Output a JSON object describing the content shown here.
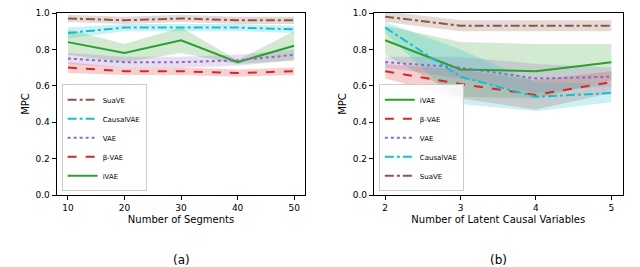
{
  "chart_data": [
    {
      "type": "line",
      "x_label": "Number of Segments",
      "y_label": "MPC",
      "annotations": [
        "(a)"
      ],
      "x": [
        10,
        20,
        30,
        40,
        50
      ],
      "xlim": [
        8,
        52
      ],
      "xticks": [
        10,
        20,
        30,
        40,
        50
      ],
      "ylim": [
        0,
        1
      ],
      "yticks": [
        {
          "value": 0,
          "label": "0.0"
        },
        {
          "value": 0.2,
          "label": "0.2"
        },
        {
          "value": 0.4,
          "label": "0.4"
        },
        {
          "value": 0.6,
          "label": "0.6"
        },
        {
          "value": 0.8,
          "label": "0.8"
        },
        {
          "value": 1,
          "label": "1.0"
        }
      ],
      "grid": false,
      "legend": "lower left",
      "series": [
        {
          "name": "iVAE",
          "color": "#2ca02c",
          "line_style": "solid",
          "values": [
            0.84,
            0.78,
            0.85,
            0.73,
            0.82
          ],
          "error": [
            0.07,
            0.05,
            0.07,
            0.01,
            0.08
          ]
        },
        {
          "name": "β-VAE",
          "color": "#d62728",
          "line_style": "dash",
          "values": [
            0.7,
            0.68,
            0.68,
            0.67,
            0.68
          ],
          "error": [
            0.03,
            0.02,
            0.02,
            0.02,
            0.02
          ]
        },
        {
          "name": "VAE",
          "color": "#9467bd",
          "line_style": "dot",
          "values": [
            0.75,
            0.73,
            0.73,
            0.74,
            0.77
          ],
          "error": [
            0.03,
            0.03,
            0.03,
            0.03,
            0.03
          ]
        },
        {
          "name": "CausalVAE",
          "color": "#17becf",
          "line_style": "dashdot",
          "values": [
            0.89,
            0.92,
            0.92,
            0.92,
            0.91
          ],
          "error": [
            0.03,
            0.02,
            0.02,
            0.02,
            0.02
          ]
        },
        {
          "name": "SuaVE",
          "color": "#8c564b",
          "line_style": "dashdot",
          "values": [
            0.97,
            0.96,
            0.97,
            0.96,
            0.96
          ],
          "error": [
            0.02,
            0.02,
            0.02,
            0.02,
            0.02
          ]
        }
      ]
    },
    {
      "type": "line",
      "x_label": "Number of Latent Causal Variables",
      "y_label": "MPC",
      "annotations": [
        "(b)"
      ],
      "x": [
        2,
        3,
        4,
        5
      ],
      "xlim": [
        1.85,
        5.15
      ],
      "xticks": [
        2,
        3,
        4,
        5
      ],
      "ylim": [
        0,
        1
      ],
      "yticks": [
        {
          "value": 0,
          "label": "0.0"
        },
        {
          "value": 0.2,
          "label": "0.2"
        },
        {
          "value": 0.4,
          "label": "0.4"
        },
        {
          "value": 0.6,
          "label": "0.6"
        },
        {
          "value": 0.8,
          "label": "0.8"
        },
        {
          "value": 1,
          "label": "1.0"
        }
      ],
      "grid": false,
      "legend": "lower left",
      "series": [
        {
          "name": "iVAE",
          "color": "#2ca02c",
          "line_style": "solid",
          "values": [
            0.85,
            0.69,
            0.68,
            0.73
          ],
          "error": [
            0.08,
            0.15,
            0.15,
            0.1
          ]
        },
        {
          "name": "β-VAE",
          "color": "#d62728",
          "line_style": "dash",
          "values": [
            0.68,
            0.61,
            0.55,
            0.62
          ],
          "error": [
            0.04,
            0.08,
            0.08,
            0.06
          ]
        },
        {
          "name": "VAE",
          "color": "#9467bd",
          "line_style": "dot",
          "values": [
            0.73,
            0.7,
            0.64,
            0.65
          ],
          "error": [
            0.03,
            0.06,
            0.08,
            0.05
          ]
        },
        {
          "name": "CausalVAE",
          "color": "#17becf",
          "line_style": "dashdot",
          "values": [
            0.92,
            0.65,
            0.54,
            0.56
          ],
          "error": [
            0.03,
            0.15,
            0.08,
            0.05
          ]
        },
        {
          "name": "SuaVE",
          "color": "#8c564b",
          "line_style": "dashdot",
          "values": [
            0.98,
            0.93,
            0.93,
            0.93
          ],
          "error": [
            0.03,
            0.03,
            0.03,
            0.03
          ]
        }
      ]
    }
  ]
}
